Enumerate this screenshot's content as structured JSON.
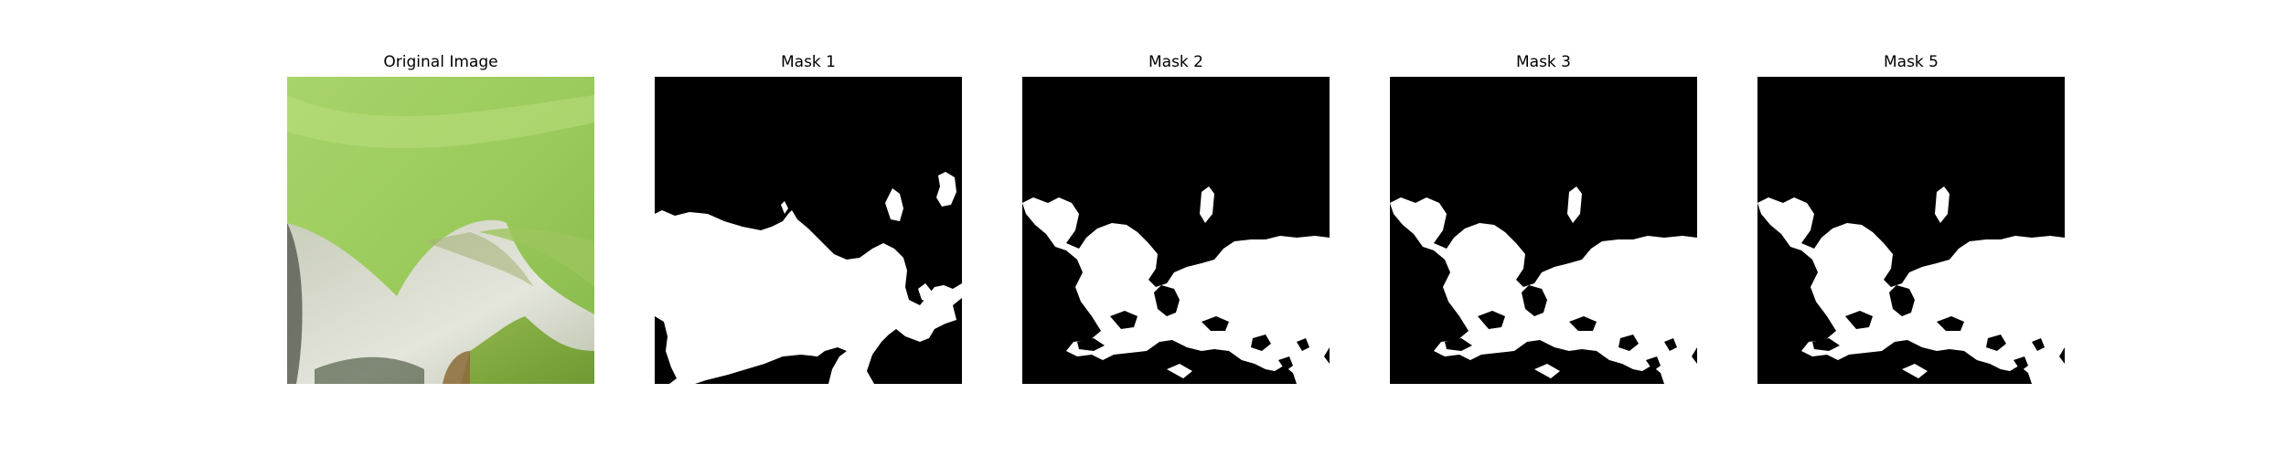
{
  "panels": [
    {
      "title": "Original Image",
      "kind": "photo"
    },
    {
      "title": "Mask 1",
      "kind": "mask"
    },
    {
      "title": "Mask 2",
      "kind": "mask"
    },
    {
      "title": "Mask 3",
      "kind": "mask"
    },
    {
      "title": "Mask 5",
      "kind": "mask"
    }
  ],
  "colors": {
    "mask_background": "#000000",
    "mask_foreground": "#ffffff",
    "leaf_green": "#9fcf63",
    "petal_white": "#d8dbcf"
  }
}
